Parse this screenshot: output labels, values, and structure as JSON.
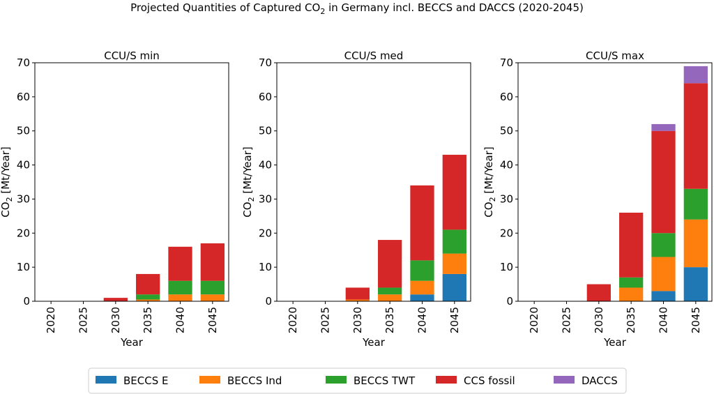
{
  "figure": {
    "title_prefix": "Projected Quantities of Captured CO",
    "title_sub": "2",
    "title_suffix": " in Germany incl. BECCS and DACCS (2020-2045)"
  },
  "colors": {
    "BECCS E": "#1f77b4",
    "BECCS Ind": "#ff7f0e",
    "BECCS TWT": "#2ca02c",
    "CCS fossil": "#d62728",
    "DACCS": "#9467bd"
  },
  "legend": {
    "placement": "bottom-center",
    "entries": [
      "BECCS E",
      "BECCS Ind",
      "BECCS TWT",
      "CCS fossil",
      "DACCS"
    ]
  },
  "chart_data": [
    {
      "type": "bar",
      "stacked": true,
      "title": "CCU/S min",
      "xlabel": "Year",
      "ylabel_main": "CO",
      "ylabel_sub": "2",
      "ylabel_unit": " [Mt/Year]",
      "categories": [
        "2020",
        "2025",
        "2030",
        "2035",
        "2040",
        "2045"
      ],
      "ylim": [
        0,
        70
      ],
      "yticks": [
        0,
        10,
        20,
        30,
        40,
        50,
        60,
        70
      ],
      "series": [
        {
          "name": "BECCS E",
          "values": [
            0,
            0,
            0,
            0,
            0,
            0
          ]
        },
        {
          "name": "BECCS Ind",
          "values": [
            0,
            0,
            0,
            0.5,
            2,
            2
          ]
        },
        {
          "name": "BECCS TWT",
          "values": [
            0,
            0,
            0,
            1.5,
            4,
            4
          ]
        },
        {
          "name": "CCS fossil",
          "values": [
            0,
            0,
            1,
            6,
            10,
            11
          ]
        },
        {
          "name": "DACCS",
          "values": [
            0,
            0,
            0,
            0,
            0,
            0
          ]
        }
      ]
    },
    {
      "type": "bar",
      "stacked": true,
      "title": "CCU/S med",
      "xlabel": "Year",
      "ylabel_main": "CO",
      "ylabel_sub": "2",
      "ylabel_unit": " [Mt/Year]",
      "categories": [
        "2020",
        "2025",
        "2030",
        "2035",
        "2040",
        "2045"
      ],
      "ylim": [
        0,
        70
      ],
      "yticks": [
        0,
        10,
        20,
        30,
        40,
        50,
        60,
        70
      ],
      "series": [
        {
          "name": "BECCS E",
          "values": [
            0,
            0,
            0,
            0,
            2,
            8
          ]
        },
        {
          "name": "BECCS Ind",
          "values": [
            0,
            0,
            0.5,
            2,
            4,
            6
          ]
        },
        {
          "name": "BECCS TWT",
          "values": [
            0,
            0,
            0,
            2,
            6,
            7
          ]
        },
        {
          "name": "CCS fossil",
          "values": [
            0,
            0,
            3.5,
            14,
            22,
            22
          ]
        },
        {
          "name": "DACCS",
          "values": [
            0,
            0,
            0,
            0,
            0,
            0
          ]
        }
      ]
    },
    {
      "type": "bar",
      "stacked": true,
      "title": "CCU/S max",
      "xlabel": "Year",
      "ylabel_main": "CO",
      "ylabel_sub": "2",
      "ylabel_unit": " [Mt/Year]",
      "categories": [
        "2020",
        "2025",
        "2030",
        "2035",
        "2040",
        "2045"
      ],
      "ylim": [
        0,
        70
      ],
      "yticks": [
        0,
        10,
        20,
        30,
        40,
        50,
        60,
        70
      ],
      "series": [
        {
          "name": "BECCS E",
          "values": [
            0,
            0,
            0,
            0,
            3,
            10
          ]
        },
        {
          "name": "BECCS Ind",
          "values": [
            0,
            0,
            0,
            4,
            10,
            14
          ]
        },
        {
          "name": "BECCS TWT",
          "values": [
            0,
            0,
            0,
            3,
            7,
            9
          ]
        },
        {
          "name": "CCS fossil",
          "values": [
            0,
            0,
            5,
            19,
            30,
            31
          ]
        },
        {
          "name": "DACCS",
          "values": [
            0,
            0,
            0,
            0,
            2,
            5
          ]
        }
      ]
    }
  ]
}
